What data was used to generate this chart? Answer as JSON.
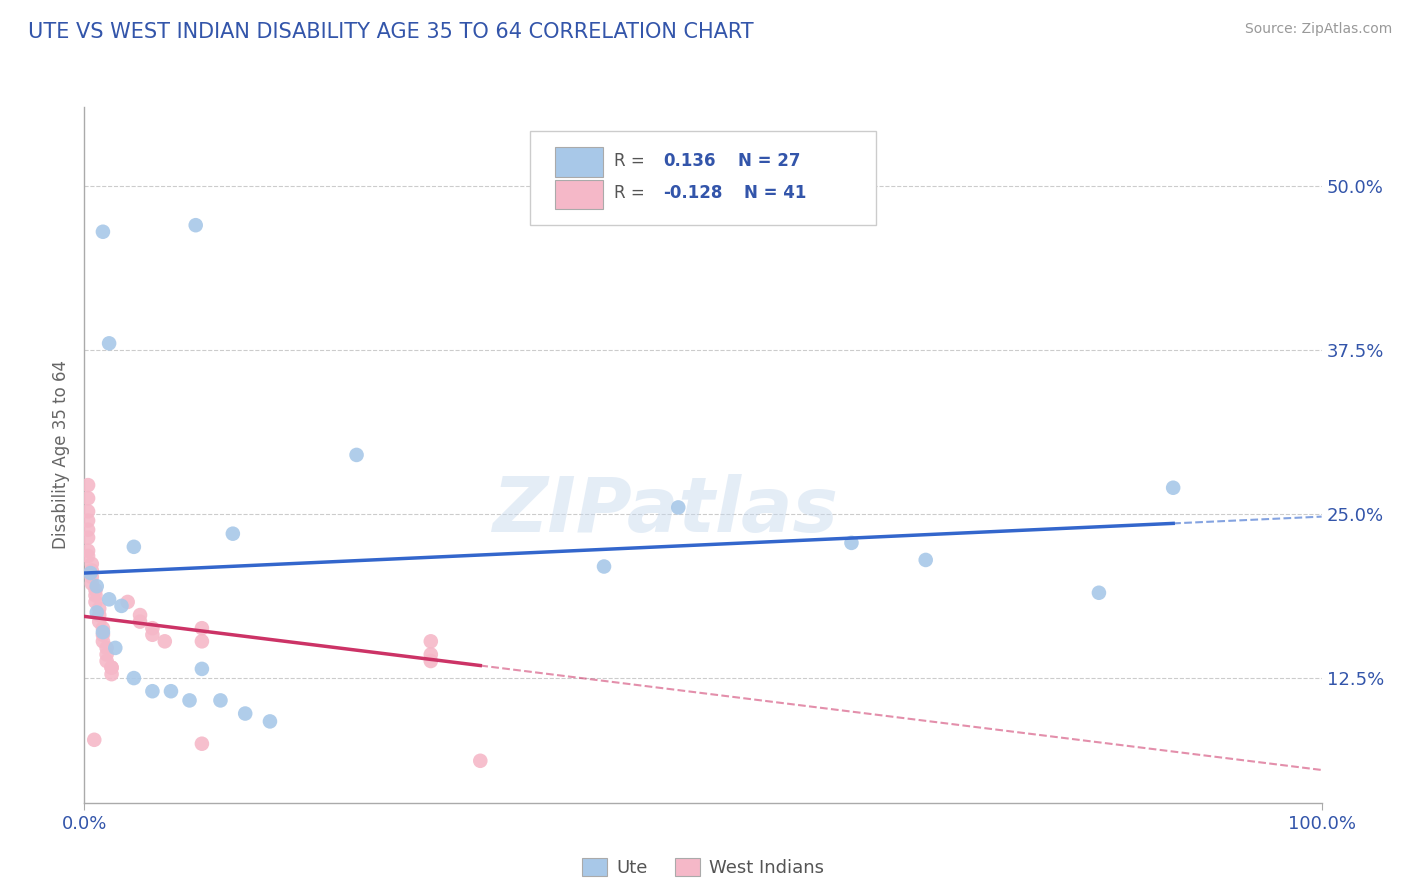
{
  "title": "UTE VS WEST INDIAN DISABILITY AGE 35 TO 64 CORRELATION CHART",
  "source": "Source: ZipAtlas.com",
  "ylabel": "Disability Age 35 to 64",
  "legend_bottom": [
    "Ute",
    "West Indians"
  ],
  "ute_R": 0.136,
  "ute_N": 27,
  "wi_R": -0.128,
  "wi_N": 41,
  "xlim": [
    0.0,
    1.0
  ],
  "ylim": [
    0.03,
    0.56
  ],
  "yticks": [
    0.125,
    0.25,
    0.375,
    0.5
  ],
  "ytick_labels": [
    "12.5%",
    "25.0%",
    "37.5%",
    "50.0%"
  ],
  "xtick_labels": [
    "0.0%",
    "100.0%"
  ],
  "ute_color": "#a8c8e8",
  "wi_color": "#f5b8c8",
  "ute_line_color": "#3366cc",
  "wi_line_color": "#cc3366",
  "background_color": "#ffffff",
  "grid_color": "#cccccc",
  "title_color": "#3355aa",
  "axis_color": "#aaaaaa",
  "watermark": "ZIPatlas",
  "ute_points": [
    [
      0.015,
      0.465
    ],
    [
      0.02,
      0.38
    ],
    [
      0.09,
      0.47
    ],
    [
      0.22,
      0.295
    ],
    [
      0.12,
      0.235
    ],
    [
      0.04,
      0.225
    ],
    [
      0.005,
      0.205
    ],
    [
      0.01,
      0.195
    ],
    [
      0.02,
      0.185
    ],
    [
      0.03,
      0.18
    ],
    [
      0.01,
      0.175
    ],
    [
      0.42,
      0.21
    ],
    [
      0.48,
      0.255
    ],
    [
      0.62,
      0.228
    ],
    [
      0.68,
      0.215
    ],
    [
      0.82,
      0.19
    ],
    [
      0.88,
      0.27
    ],
    [
      0.015,
      0.16
    ],
    [
      0.025,
      0.148
    ],
    [
      0.04,
      0.125
    ],
    [
      0.055,
      0.115
    ],
    [
      0.07,
      0.115
    ],
    [
      0.085,
      0.108
    ],
    [
      0.095,
      0.132
    ],
    [
      0.11,
      0.108
    ],
    [
      0.13,
      0.098
    ],
    [
      0.15,
      0.092
    ]
  ],
  "wi_points": [
    [
      0.003,
      0.272
    ],
    [
      0.003,
      0.262
    ],
    [
      0.003,
      0.252
    ],
    [
      0.003,
      0.245
    ],
    [
      0.003,
      0.238
    ],
    [
      0.003,
      0.232
    ],
    [
      0.003,
      0.222
    ],
    [
      0.003,
      0.218
    ],
    [
      0.006,
      0.212
    ],
    [
      0.006,
      0.207
    ],
    [
      0.006,
      0.202
    ],
    [
      0.006,
      0.197
    ],
    [
      0.009,
      0.192
    ],
    [
      0.009,
      0.188
    ],
    [
      0.009,
      0.183
    ],
    [
      0.012,
      0.178
    ],
    [
      0.012,
      0.173
    ],
    [
      0.012,
      0.168
    ],
    [
      0.015,
      0.163
    ],
    [
      0.015,
      0.158
    ],
    [
      0.015,
      0.153
    ],
    [
      0.018,
      0.148
    ],
    [
      0.018,
      0.143
    ],
    [
      0.018,
      0.138
    ],
    [
      0.022,
      0.133
    ],
    [
      0.022,
      0.133
    ],
    [
      0.022,
      0.128
    ],
    [
      0.035,
      0.183
    ],
    [
      0.045,
      0.173
    ],
    [
      0.045,
      0.168
    ],
    [
      0.055,
      0.163
    ],
    [
      0.055,
      0.158
    ],
    [
      0.065,
      0.153
    ],
    [
      0.095,
      0.163
    ],
    [
      0.095,
      0.153
    ],
    [
      0.095,
      0.075
    ],
    [
      0.28,
      0.153
    ],
    [
      0.28,
      0.143
    ],
    [
      0.28,
      0.138
    ],
    [
      0.32,
      0.062
    ],
    [
      0.008,
      0.078
    ]
  ]
}
